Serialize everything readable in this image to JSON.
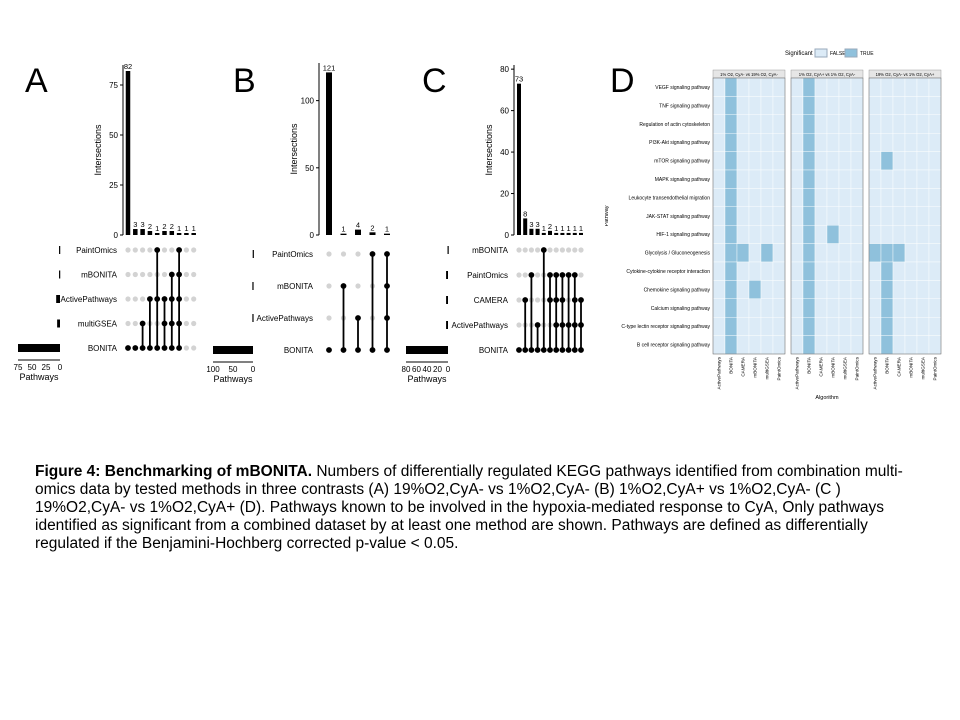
{
  "panel_letters": [
    "A",
    "B",
    "C",
    "D"
  ],
  "chart_data": [
    {
      "type": "bar",
      "panel": "A",
      "ylabel": "Intersections",
      "xlabel": "Pathways",
      "yticks": [
        0,
        25,
        50,
        75
      ],
      "ylim": [
        0,
        85
      ],
      "values": [
        82,
        3,
        3,
        2,
        1,
        2,
        2,
        1,
        1,
        1
      ],
      "value_labels": [
        "82",
        "3",
        "3",
        "2",
        "1",
        "2",
        "2",
        "1",
        "1",
        "1"
      ],
      "sets": [
        "PaintOmics",
        "mBONITA",
        "ActivePathways",
        "multiGSEA",
        "BONITA"
      ],
      "set_sizes": [
        2,
        2,
        8,
        6,
        88
      ],
      "size_ticks": [
        "75",
        "50",
        "25",
        "0"
      ],
      "size_max": 88,
      "matrix": [
        [
          4
        ],
        [
          4
        ],
        [
          3,
          4
        ],
        [
          2,
          4
        ],
        [
          0,
          2,
          4
        ],
        [
          2,
          3,
          4
        ],
        [
          1,
          2,
          3,
          4
        ],
        [
          0,
          1,
          2,
          3,
          4
        ],
        [],
        []
      ]
    },
    {
      "type": "bar",
      "panel": "B",
      "ylabel": "Intersections",
      "xlabel": "Pathways",
      "yticks": [
        0,
        50,
        100
      ],
      "ylim": [
        0,
        128
      ],
      "values": [
        121,
        1,
        4,
        2,
        1
      ],
      "value_labels": [
        "121",
        "1",
        "4",
        "2",
        "1"
      ],
      "sets": [
        "PaintOmics",
        "mBONITA",
        "ActivePathways",
        "BONITA"
      ],
      "set_sizes": [
        1,
        2,
        2,
        128
      ],
      "size_ticks": [
        "100",
        "50",
        "0"
      ],
      "size_max": 128,
      "matrix": [
        [
          3
        ],
        [
          1,
          3
        ],
        [
          2,
          3
        ],
        [
          0,
          3
        ],
        [
          0,
          1,
          2,
          3
        ]
      ]
    },
    {
      "type": "bar",
      "panel": "C",
      "ylabel": "Intersections",
      "xlabel": "Pathways",
      "yticks": [
        0,
        20,
        40,
        60,
        80
      ],
      "ylim": [
        0,
        82
      ],
      "values": [
        73,
        8,
        3,
        3,
        1,
        2,
        1,
        1,
        1,
        1,
        1
      ],
      "value_labels": [
        "73",
        "8",
        "3",
        "3",
        "1",
        "2",
        "1",
        "1",
        "1",
        "1",
        "1"
      ],
      "sets": [
        "mBONITA",
        "PaintOmics",
        "CAMERA",
        "ActivePathways",
        "BONITA"
      ],
      "set_sizes": [
        1,
        4,
        4,
        4,
        88
      ],
      "size_ticks": [
        "80",
        "60",
        "40",
        "20",
        "0"
      ],
      "size_max": 88,
      "matrix": [
        [
          4
        ],
        [
          2,
          4
        ],
        [
          1,
          4
        ],
        [
          3,
          4
        ],
        [
          0,
          4
        ],
        [
          1,
          2,
          4
        ],
        [
          1,
          2,
          3,
          4
        ],
        [
          1,
          2,
          3,
          4
        ],
        [
          1,
          3,
          4
        ],
        [
          1,
          2,
          3,
          4
        ],
        [
          2,
          3,
          4
        ]
      ]
    },
    {
      "type": "heatmap",
      "panel": "D",
      "legend_title": "Significant",
      "legend_items": [
        {
          "label": "FALSE",
          "color": "#dcebf7"
        },
        {
          "label": "TRUE",
          "color": "#8fc1dc"
        }
      ],
      "xlabel": "Algorithm",
      "ylabel": "Pathway",
      "facets": [
        "1% O2, CyA- vs 19% O2, CyA-",
        "1% O2, CyA+ vs 1% O2, CyA-",
        "19% O2, CyA- vs 1% O2, CyA+"
      ],
      "algorithms": [
        "ActivePathways",
        "BONITA",
        "CAMERA",
        "mBONITA",
        "multiGSEA",
        "PaintOmics"
      ],
      "pathways": [
        "VEGF signaling pathway",
        "TNF signaling pathway",
        "Regulation of actin cytoskeleton",
        "PI3K-Akt signaling pathway",
        "mTOR signaling pathway",
        "MAPK signaling pathway",
        "Leukocyte transendothelial migration",
        "JAK-STAT signaling pathway",
        "HIF-1 signaling pathway",
        "Glycolysis / Gluconeogenesis",
        "Cytokine-cytokine receptor interaction",
        "Chemokine signaling pathway",
        "Calcium signaling pathway",
        "C-type lectin receptor signaling pathway",
        "B cell receptor signaling pathway"
      ],
      "significant": [
        [
          [
            0,
            1,
            0,
            0,
            0,
            0
          ],
          [
            0,
            1,
            0,
            0,
            0,
            0
          ],
          [
            0,
            1,
            0,
            0,
            0,
            0
          ],
          [
            0,
            1,
            0,
            0,
            0,
            0
          ],
          [
            0,
            1,
            0,
            0,
            0,
            0
          ],
          [
            0,
            1,
            0,
            0,
            0,
            0
          ],
          [
            0,
            1,
            0,
            0,
            0,
            0
          ],
          [
            0,
            1,
            0,
            0,
            0,
            0
          ],
          [
            0,
            1,
            0,
            0,
            0,
            0
          ],
          [
            0,
            1,
            1,
            0,
            1,
            0
          ],
          [
            0,
            1,
            0,
            0,
            0,
            0
          ],
          [
            0,
            1,
            0,
            1,
            0,
            0
          ],
          [
            0,
            1,
            0,
            0,
            0,
            0
          ],
          [
            0,
            1,
            0,
            0,
            0,
            0
          ],
          [
            0,
            1,
            0,
            0,
            0,
            0
          ]
        ],
        [
          [
            0,
            1,
            0,
            0,
            0,
            0
          ],
          [
            0,
            1,
            0,
            0,
            0,
            0
          ],
          [
            0,
            1,
            0,
            0,
            0,
            0
          ],
          [
            0,
            1,
            0,
            0,
            0,
            0
          ],
          [
            0,
            1,
            0,
            0,
            0,
            0
          ],
          [
            0,
            1,
            0,
            0,
            0,
            0
          ],
          [
            0,
            1,
            0,
            0,
            0,
            0
          ],
          [
            0,
            1,
            0,
            0,
            0,
            0
          ],
          [
            0,
            1,
            0,
            1,
            0,
            0
          ],
          [
            0,
            1,
            0,
            0,
            0,
            0
          ],
          [
            0,
            1,
            0,
            0,
            0,
            0
          ],
          [
            0,
            1,
            0,
            0,
            0,
            0
          ],
          [
            0,
            1,
            0,
            0,
            0,
            0
          ],
          [
            0,
            1,
            0,
            0,
            0,
            0
          ],
          [
            0,
            1,
            0,
            0,
            0,
            0
          ]
        ],
        [
          [
            0,
            0,
            0,
            0,
            0,
            0
          ],
          [
            0,
            0,
            0,
            0,
            0,
            0
          ],
          [
            0,
            0,
            0,
            0,
            0,
            0
          ],
          [
            0,
            0,
            0,
            0,
            0,
            0
          ],
          [
            0,
            1,
            0,
            0,
            0,
            0
          ],
          [
            0,
            0,
            0,
            0,
            0,
            0
          ],
          [
            0,
            0,
            0,
            0,
            0,
            0
          ],
          [
            0,
            0,
            0,
            0,
            0,
            0
          ],
          [
            0,
            0,
            0,
            0,
            0,
            0
          ],
          [
            1,
            1,
            1,
            0,
            0,
            0
          ],
          [
            0,
            1,
            0,
            0,
            0,
            0
          ],
          [
            0,
            1,
            0,
            0,
            0,
            0
          ],
          [
            0,
            1,
            0,
            0,
            0,
            0
          ],
          [
            0,
            1,
            0,
            0,
            0,
            0
          ],
          [
            0,
            1,
            0,
            0,
            0,
            0
          ]
        ]
      ]
    }
  ],
  "caption": {
    "title": "Figure 4: Benchmarking of mBONITA.",
    "body": " Numbers of differentially regulated KEGG pathways identified from combination multi-omics data by tested methods in three contrasts (A) 19%O2,CyA- vs 1%O2,CyA- (B) 1%O2,CyA+ vs 1%O2,CyA-  (C ) 19%O2,CyA- vs 1%O2,CyA+ (D). Pathways known to be involved in the hypoxia-mediated response to CyA, Only pathways identified as significant from a combined dataset by at least one method are shown. Pathways are defined as differentially regulated if the Benjamini-Hochberg corrected p-value < 0.05."
  }
}
